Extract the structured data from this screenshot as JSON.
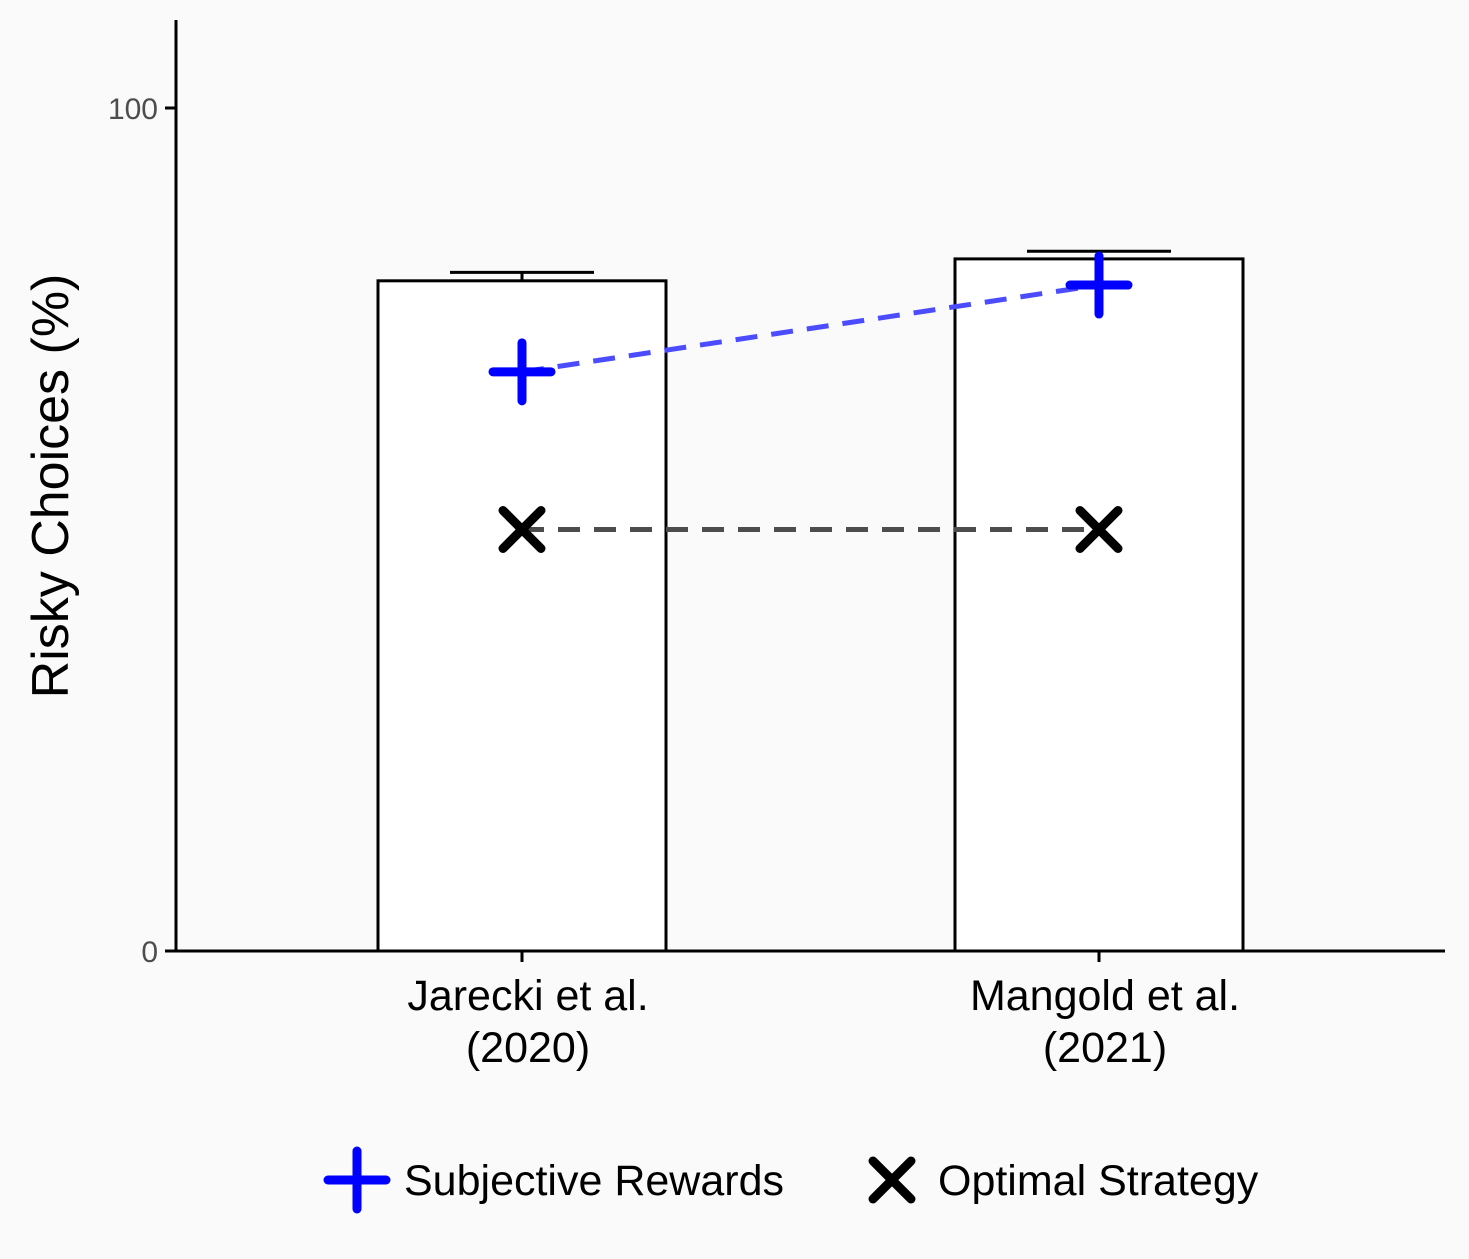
{
  "chart_data": {
    "type": "bar",
    "categories": [
      "Jarecki et al.\n(2020)",
      "Mangold et al.\n(2021)"
    ],
    "values": [
      79.5,
      82.1
    ],
    "error_upper": [
      80.5,
      83.0
    ],
    "ylabel": "Risky Choices (%)",
    "xlabel": "",
    "ylim": [
      0,
      110
    ],
    "yticks": [
      0,
      100
    ],
    "grid": false,
    "legend_position": "bottom",
    "series": [
      {
        "name": "Subjective Rewards",
        "marker": "plus",
        "color": "#0000ff",
        "line_color": "#4c4cff",
        "values": [
          68.7,
          79.0
        ]
      },
      {
        "name": "Optimal Strategy",
        "marker": "x",
        "color": "#000000",
        "line_color": "#4d4d4d",
        "values": [
          50,
          50
        ]
      }
    ]
  }
}
